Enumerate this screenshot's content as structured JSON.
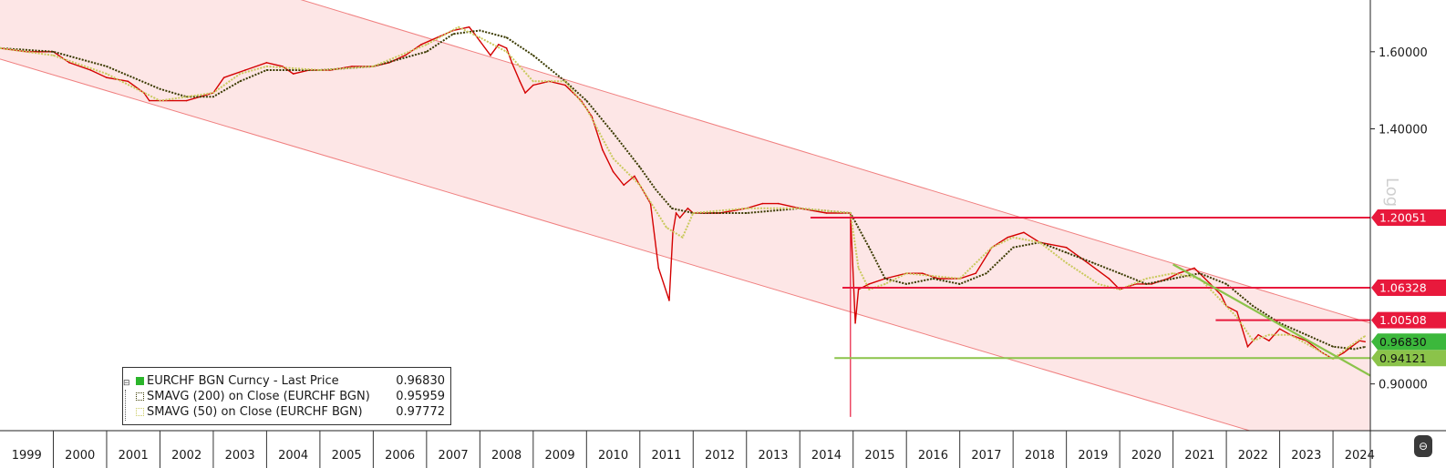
{
  "chart_data": {
    "type": "line",
    "title": "",
    "scale": "log",
    "x_range": [
      1999.0,
      2024.7
    ],
    "ylim": [
      0.83,
      1.75
    ],
    "y_ticks": [
      {
        "value": 1.6,
        "label": "1.60000"
      },
      {
        "value": 1.4,
        "label": "1.40000"
      },
      {
        "value": 0.9,
        "label": "0.90000"
      }
    ],
    "x_tick_labels": [
      "1999",
      "2000",
      "2001",
      "2002",
      "2003",
      "2004",
      "2005",
      "2006",
      "2007",
      "2008",
      "2009",
      "2010",
      "2011",
      "2012",
      "2013",
      "2014",
      "2015",
      "2016",
      "2017",
      "2018",
      "2019",
      "2020",
      "2021",
      "2022",
      "2023",
      "2024"
    ],
    "series": [
      {
        "name": "EURCHF BGN Curncy - Last Price",
        "color": "#d40000",
        "x": [
          1999.0,
          1999.5,
          2000.0,
          2000.3,
          2000.7,
          2001.0,
          2001.4,
          2001.7,
          2001.8,
          2002.0,
          2002.5,
          2003.0,
          2003.2,
          2003.6,
          2004.0,
          2004.3,
          2004.5,
          2004.8,
          2005.2,
          2005.6,
          2006.0,
          2006.3,
          2006.6,
          2006.9,
          2007.2,
          2007.5,
          2007.8,
          2007.9,
          2008.0,
          2008.2,
          2008.35,
          2008.5,
          2008.6,
          2008.75,
          2008.85,
          2009.0,
          2009.3,
          2009.6,
          2009.9,
          2010.1,
          2010.3,
          2010.5,
          2010.7,
          2010.9,
          2011.05,
          2011.2,
          2011.35,
          2011.55,
          2011.62,
          2011.68,
          2011.75,
          2011.9,
          2012.0,
          2012.5,
          2013.0,
          2013.3,
          2013.6,
          2014.0,
          2014.5,
          2014.95,
          2015.04,
          2015.1,
          2015.3,
          2015.6,
          2016.0,
          2016.3,
          2016.6,
          2017.0,
          2017.3,
          2017.6,
          2017.9,
          2018.2,
          2018.5,
          2019.0,
          2019.4,
          2019.8,
          2020.0,
          2020.3,
          2020.6,
          2020.9,
          2021.1,
          2021.4,
          2021.7,
          2021.9,
          2022.0,
          2022.2,
          2022.4,
          2022.6,
          2022.8,
          2023.0,
          2023.2,
          2023.5,
          2023.8,
          2024.0,
          2024.2,
          2024.35,
          2024.5,
          2024.6
        ],
        "values": [
          1.61,
          1.6,
          1.6,
          1.57,
          1.55,
          1.53,
          1.52,
          1.49,
          1.47,
          1.47,
          1.47,
          1.49,
          1.53,
          1.55,
          1.57,
          1.56,
          1.54,
          1.55,
          1.55,
          1.56,
          1.56,
          1.57,
          1.59,
          1.62,
          1.64,
          1.66,
          1.67,
          1.65,
          1.63,
          1.59,
          1.62,
          1.61,
          1.57,
          1.52,
          1.49,
          1.51,
          1.52,
          1.51,
          1.47,
          1.43,
          1.35,
          1.3,
          1.27,
          1.29,
          1.26,
          1.23,
          1.1,
          1.04,
          1.17,
          1.21,
          1.2,
          1.22,
          1.21,
          1.21,
          1.22,
          1.23,
          1.23,
          1.22,
          1.21,
          1.21,
          1.0,
          1.06,
          1.07,
          1.08,
          1.09,
          1.09,
          1.08,
          1.08,
          1.09,
          1.14,
          1.16,
          1.17,
          1.15,
          1.14,
          1.11,
          1.08,
          1.06,
          1.07,
          1.07,
          1.08,
          1.09,
          1.1,
          1.07,
          1.05,
          1.03,
          1.02,
          0.96,
          0.98,
          0.97,
          0.99,
          0.98,
          0.97,
          0.95,
          0.94,
          0.95,
          0.96,
          0.97,
          0.9683
        ]
      },
      {
        "name": "SMAVG (200) on Close (EURCHF BGN)",
        "color": "#3a3a00",
        "x": [
          1999.0,
          2000.0,
          2001.0,
          2002.0,
          2002.5,
          2003.0,
          2003.5,
          2004.0,
          2005.0,
          2006.0,
          2007.0,
          2007.5,
          2008.0,
          2008.5,
          2009.0,
          2009.6,
          2010.0,
          2010.5,
          2011.0,
          2011.3,
          2011.6,
          2012.0,
          2012.5,
          2013.0,
          2014.0,
          2014.95,
          2015.3,
          2015.6,
          2016.0,
          2016.5,
          2017.0,
          2017.5,
          2018.0,
          2018.5,
          2019.0,
          2019.5,
          2020.0,
          2020.5,
          2021.0,
          2021.5,
          2022.0,
          2022.5,
          2023.0,
          2023.5,
          2024.0,
          2024.4,
          2024.6
        ],
        "values": [
          1.61,
          1.6,
          1.56,
          1.5,
          1.48,
          1.48,
          1.52,
          1.55,
          1.55,
          1.56,
          1.6,
          1.65,
          1.66,
          1.64,
          1.59,
          1.52,
          1.47,
          1.39,
          1.31,
          1.26,
          1.22,
          1.21,
          1.21,
          1.21,
          1.22,
          1.21,
          1.14,
          1.08,
          1.07,
          1.08,
          1.07,
          1.09,
          1.14,
          1.15,
          1.13,
          1.11,
          1.09,
          1.07,
          1.08,
          1.09,
          1.07,
          1.03,
          1.0,
          0.98,
          0.96,
          0.956,
          0.9596
        ]
      },
      {
        "name": "SMAVG (50) on Close (EURCHF BGN)",
        "color": "#c9c95c",
        "x": [
          1999.0,
          2000.0,
          2001.0,
          2002.0,
          2003.0,
          2003.5,
          2004.0,
          2005.0,
          2006.0,
          2007.0,
          2007.6,
          2008.0,
          2008.5,
          2009.0,
          2009.6,
          2010.0,
          2010.5,
          2011.0,
          2011.5,
          2011.8,
          2012.0,
          2013.0,
          2014.0,
          2014.95,
          2015.1,
          2015.3,
          2015.6,
          2016.0,
          2017.0,
          2017.6,
          2018.0,
          2018.5,
          2019.0,
          2019.6,
          2020.0,
          2020.5,
          2021.0,
          2021.5,
          2021.8,
          2022.2,
          2022.5,
          2022.8,
          2023.2,
          2023.6,
          2024.0,
          2024.3,
          2024.6
        ],
        "values": [
          1.61,
          1.59,
          1.54,
          1.47,
          1.49,
          1.54,
          1.56,
          1.55,
          1.56,
          1.62,
          1.67,
          1.64,
          1.6,
          1.52,
          1.52,
          1.45,
          1.33,
          1.27,
          1.18,
          1.16,
          1.21,
          1.22,
          1.22,
          1.21,
          1.1,
          1.06,
          1.07,
          1.09,
          1.08,
          1.14,
          1.16,
          1.15,
          1.11,
          1.07,
          1.06,
          1.08,
          1.09,
          1.08,
          1.05,
          1.01,
          0.97,
          0.98,
          0.98,
          0.96,
          0.94,
          0.96,
          0.9777
        ]
      }
    ],
    "channel": {
      "upper": {
        "x": [
          1999.0,
          2024.7
        ],
        "values": [
          2.05,
          1.0
        ]
      },
      "lower": {
        "x": [
          1999.0,
          2024.7
        ],
        "values": [
          1.58,
          0.78
        ]
      },
      "fill_color": "#fde6e6",
      "line_color": "#f08080"
    },
    "levels": [
      {
        "value": 1.20051,
        "label": "1.20051",
        "x_start": 2014.2,
        "color": "#e8193c"
      },
      {
        "value": 1.06328,
        "label": "1.06328",
        "x_start": 2014.8,
        "color": "#e8193c"
      },
      {
        "value": 1.00508,
        "label": "1.00508",
        "x_start": 2021.8,
        "color": "#e8193c"
      },
      {
        "value": 0.94121,
        "label": "0.94121",
        "x_start": 2014.65,
        "color": "#8bc34a"
      }
    ],
    "last_price_badge": {
      "value": 0.9683,
      "label": "0.96830",
      "color": "#3cb83c"
    },
    "trendline": {
      "x": [
        2021.0,
        2024.7
      ],
      "values": [
        1.107,
        0.913
      ],
      "color": "#8bc34a"
    },
    "event_line": {
      "x": 2014.95,
      "from": 0.85,
      "to": 1.21,
      "color": "#e8193c"
    },
    "legend_placement": "bottom-left",
    "grid": false,
    "axis_label": "Log"
  },
  "legend": {
    "items": [
      {
        "name": "EURCHF BGN Curncy - Last Price",
        "value": "0.96830",
        "color": "#2bb52b"
      },
      {
        "name": "SMAVG (200)  on Close (EURCHF BGN)",
        "value": "0.95959",
        "color": "#3a3a00"
      },
      {
        "name": "SMAVG (50)  on Close (EURCHF BGN)",
        "value": "0.97772",
        "color": "#c9c95c"
      }
    ],
    "expander_glyph": "⊟"
  },
  "side_button": {
    "glyph": "⊖"
  }
}
